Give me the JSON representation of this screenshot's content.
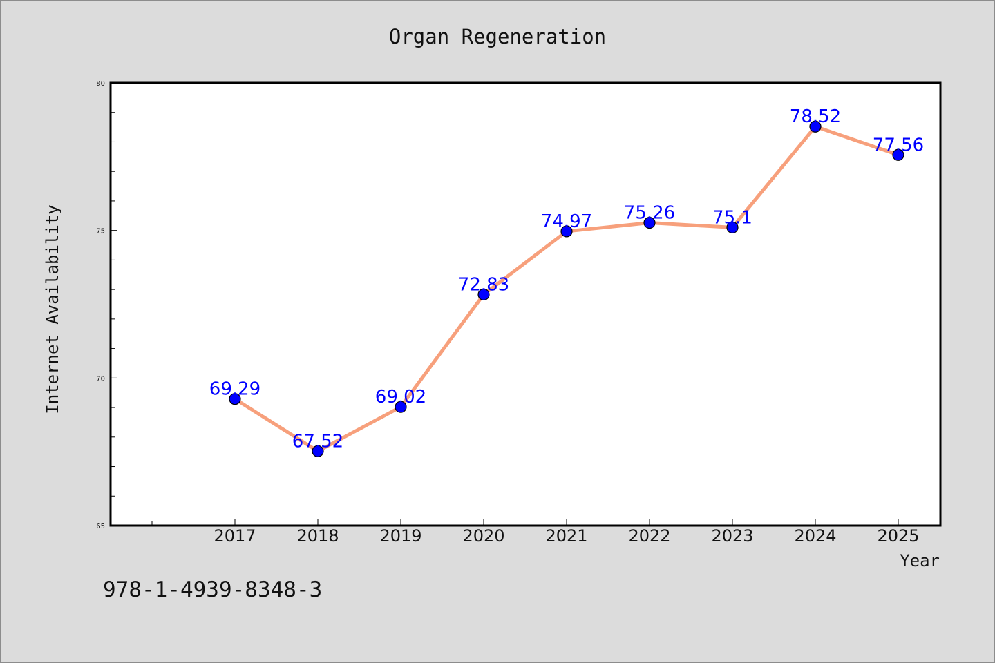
{
  "chart_data": {
    "type": "line",
    "title": "Organ Regeneration",
    "xlabel": "Year",
    "ylabel": "Internet Availability",
    "categories": [
      "2017",
      "2018",
      "2019",
      "2020",
      "2021",
      "2022",
      "2023",
      "2024",
      "2025"
    ],
    "series": [
      {
        "values": [
          69.29,
          67.52,
          69.02,
          72.83,
          74.97,
          75.26,
          75.1,
          78.52,
          77.56
        ],
        "labels": [
          "69.29",
          "67.52",
          "69.02",
          "72.83",
          "74.97",
          "75.26",
          "75.1",
          "78.52",
          "77.56"
        ]
      }
    ],
    "ylim": [
      65,
      80
    ],
    "y_ticks": [
      "65",
      "70",
      "75",
      "80"
    ],
    "grid": false,
    "legend": "none",
    "colors": {
      "line": "#f7a07c",
      "marker": "#0000ff",
      "marker_edge": "#000000",
      "data_label": "#0000ff",
      "plot_background": "#ffffff",
      "page_background": "#dcdcdc"
    }
  },
  "footer": {
    "isbn": "978-1-4939-8348-3"
  }
}
